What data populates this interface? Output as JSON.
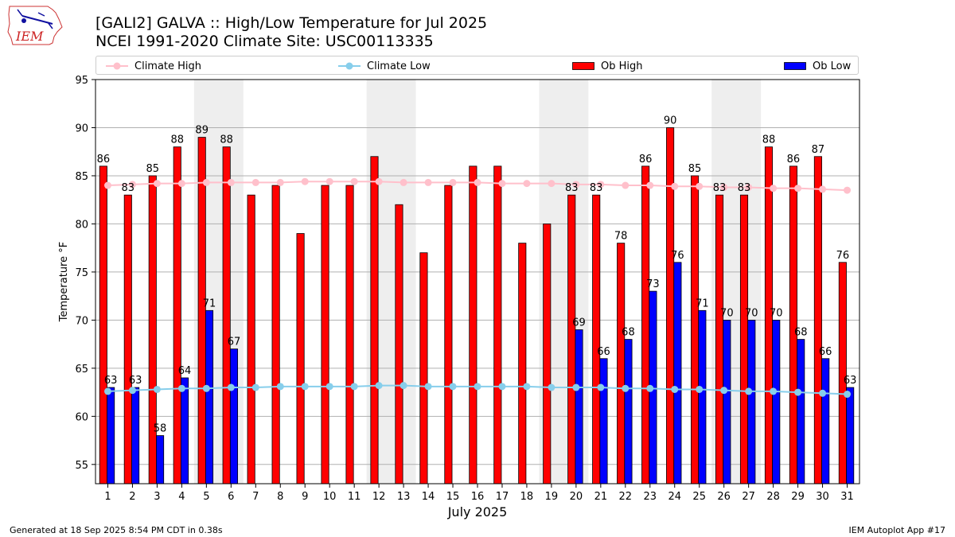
{
  "header": {
    "title_line1": "[GALI2] GALVA :: High/Low Temperature for Jul 2025",
    "title_line2": "NCEI 1991-2020 Climate Site: USC00113335"
  },
  "logo": {
    "text": "IEM"
  },
  "footer": {
    "generated": "Generated at 18 Sep 2025 8:54 PM CDT in 0.38s",
    "app": "IEM Autoplot App #17"
  },
  "colors": {
    "ob_high": "#ff0000",
    "ob_low": "#0000ff",
    "climate_high": "#ffc0cb",
    "climate_low": "#87ceeb",
    "weekend_shade": "#eeeeee",
    "grid": "#b0b0b0"
  },
  "chart_data": {
    "type": "bar",
    "xlabel": "July 2025",
    "ylabel": "Temperature °F",
    "ylim": [
      53,
      95
    ],
    "yticks": [
      55,
      60,
      65,
      70,
      75,
      80,
      85,
      90,
      95
    ],
    "grid": "horizontal",
    "legend_position": "top",
    "categories": [
      "1",
      "2",
      "3",
      "4",
      "5",
      "6",
      "7",
      "8",
      "9",
      "10",
      "11",
      "12",
      "13",
      "14",
      "15",
      "16",
      "17",
      "18",
      "19",
      "20",
      "21",
      "22",
      "23",
      "24",
      "25",
      "26",
      "27",
      "28",
      "29",
      "30",
      "31"
    ],
    "shaded_days": [
      [
        5,
        6
      ],
      [
        12,
        13
      ],
      [
        19,
        20
      ],
      [
        26,
        27
      ]
    ],
    "series": [
      {
        "name": "Ob High",
        "kind": "bar",
        "values": [
          86,
          83,
          85,
          88,
          89,
          88,
          83,
          84,
          79,
          84,
          84,
          87,
          82,
          77,
          84,
          86,
          86,
          78,
          80,
          83,
          83,
          78,
          86,
          90,
          85,
          83,
          83,
          88,
          86,
          87,
          76
        ],
        "labeled": [
          true,
          true,
          true,
          true,
          true,
          true,
          false,
          false,
          false,
          false,
          false,
          false,
          false,
          false,
          false,
          false,
          false,
          false,
          false,
          true,
          true,
          true,
          true,
          true,
          true,
          true,
          true,
          true,
          true,
          true,
          true
        ]
      },
      {
        "name": "Ob Low",
        "kind": "bar",
        "values": [
          63,
          63,
          58,
          64,
          71,
          67,
          null,
          null,
          null,
          null,
          null,
          null,
          null,
          null,
          null,
          null,
          null,
          null,
          null,
          69,
          66,
          68,
          73,
          76,
          71,
          70,
          70,
          70,
          68,
          66,
          63
        ]
      },
      {
        "name": "Climate High",
        "kind": "line",
        "values": [
          84.0,
          84.1,
          84.2,
          84.2,
          84.3,
          84.3,
          84.3,
          84.3,
          84.4,
          84.4,
          84.4,
          84.4,
          84.3,
          84.3,
          84.3,
          84.3,
          84.2,
          84.2,
          84.2,
          84.1,
          84.1,
          84.0,
          84.0,
          83.9,
          83.9,
          83.8,
          83.8,
          83.7,
          83.7,
          83.6,
          83.5
        ]
      },
      {
        "name": "Climate Low",
        "kind": "line",
        "values": [
          62.6,
          62.7,
          62.8,
          62.9,
          62.9,
          63.0,
          63.0,
          63.1,
          63.1,
          63.1,
          63.1,
          63.2,
          63.2,
          63.1,
          63.1,
          63.1,
          63.1,
          63.1,
          63.0,
          63.0,
          63.0,
          62.9,
          62.9,
          62.8,
          62.8,
          62.7,
          62.6,
          62.6,
          62.5,
          62.4,
          62.3
        ]
      }
    ]
  }
}
